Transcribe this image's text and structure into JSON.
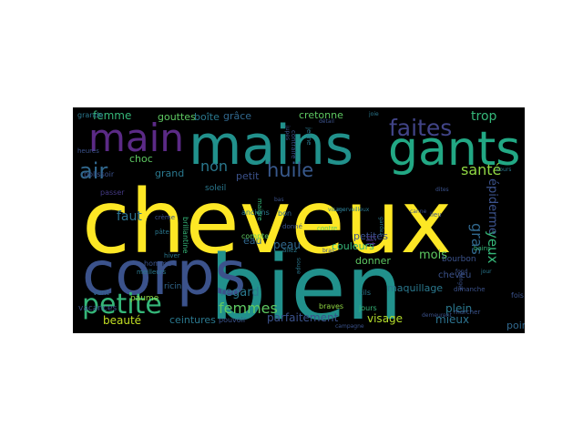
{
  "colors": {
    "background": "#000000",
    "page": "#ffffff",
    "palette": [
      "#fde725",
      "#35b779",
      "#21918c",
      "#31688e",
      "#443983",
      "#440154",
      "#90d743",
      "#1f9e89"
    ]
  },
  "words": [
    {
      "text": "cheveux",
      "color": "#fde725",
      "orient": "h"
    },
    {
      "text": "bien",
      "color": "#21918c",
      "orient": "h"
    },
    {
      "text": "mains",
      "color": "#21918c",
      "orient": "h"
    },
    {
      "text": "corps",
      "color": "#3b528b",
      "orient": "h"
    },
    {
      "text": "gants",
      "color": "#22a884",
      "orient": "h"
    },
    {
      "text": "main",
      "color": "#5b2a86",
      "orient": "h"
    },
    {
      "text": "petite",
      "color": "#35b779",
      "orient": "h"
    },
    {
      "text": "faites",
      "color": "#414487",
      "orient": "h"
    },
    {
      "text": "air",
      "color": "#31688e",
      "orient": "h"
    },
    {
      "text": "huile",
      "color": "#38598c",
      "orient": "h"
    },
    {
      "text": "santé",
      "color": "#90d743",
      "orient": "h"
    },
    {
      "text": "femmes",
      "color": "#5ec962",
      "orient": "h"
    },
    {
      "text": "non",
      "color": "#2a788e",
      "orient": "h"
    },
    {
      "text": "trop",
      "color": "#35b779",
      "orient": "h"
    },
    {
      "text": "faut",
      "color": "#2c728e",
      "orient": "h"
    },
    {
      "text": "gras",
      "color": "#31688e",
      "orient": "v"
    },
    {
      "text": "regard",
      "color": "#2a788e",
      "orient": "h"
    },
    {
      "text": "mois",
      "color": "#5ec962",
      "orient": "h"
    },
    {
      "text": "mieux",
      "color": "#2c728e",
      "orient": "h"
    },
    {
      "text": "beauté",
      "color": "#c2df23",
      "orient": "h"
    },
    {
      "text": "parfaitement",
      "color": "#3b528b",
      "orient": "h"
    },
    {
      "text": "visage",
      "color": "#b5de2b",
      "orient": "h"
    },
    {
      "text": "yeux",
      "color": "#35b779",
      "orient": "v"
    },
    {
      "text": "lit",
      "color": "#472d7b",
      "orient": "v"
    },
    {
      "text": "épiderme",
      "color": "#3b528b",
      "orient": "v"
    },
    {
      "text": "plein",
      "color": "#2a788e",
      "orient": "h"
    },
    {
      "text": "femme",
      "color": "#35b779",
      "orient": "h"
    },
    {
      "text": "gouttes",
      "color": "#5ec962",
      "orient": "h"
    },
    {
      "text": "boîte",
      "color": "#2a788e",
      "orient": "h"
    },
    {
      "text": "grâce",
      "color": "#31688e",
      "orient": "h"
    },
    {
      "text": "cretonne",
      "color": "#5ec962",
      "orient": "h"
    },
    {
      "text": "choc",
      "color": "#5ec962",
      "orient": "h"
    },
    {
      "text": "grand",
      "color": "#2a788e",
      "orient": "h"
    },
    {
      "text": "petit",
      "color": "#3b528b",
      "orient": "h"
    },
    {
      "text": "peau",
      "color": "#31688e",
      "orient": "h"
    },
    {
      "text": "donner",
      "color": "#5ec962",
      "orient": "h"
    },
    {
      "text": "ceintures",
      "color": "#2a788e",
      "orient": "h"
    },
    {
      "text": "point",
      "color": "#31688e",
      "orient": "h"
    },
    {
      "text": "maquillage",
      "color": "#2a788e",
      "orient": "h"
    },
    {
      "text": "eau",
      "color": "#31688e",
      "orient": "h"
    },
    {
      "text": "petites",
      "color": "#3b528b",
      "orient": "h"
    },
    {
      "text": "couleurs",
      "color": "#35b779",
      "orient": "h"
    },
    {
      "text": "bourbon",
      "color": "#3b528b",
      "orient": "h"
    },
    {
      "text": "cheveu",
      "color": "#3b528b",
      "orient": "h"
    },
    {
      "text": "pouvoir",
      "color": "#3b528b",
      "orient": "h"
    },
    {
      "text": "vacances",
      "color": "#3b528b",
      "orient": "h"
    },
    {
      "text": "vent",
      "color": "#31688e",
      "orient": "h"
    },
    {
      "text": "paume",
      "color": "#90d743",
      "orient": "h"
    },
    {
      "text": "ricin",
      "color": "#31688e",
      "orient": "h"
    },
    {
      "text": "soleil",
      "color": "#2a788e",
      "orient": "h"
    },
    {
      "text": "anciens",
      "color": "#2a788e",
      "orient": "h"
    },
    {
      "text": "compte",
      "color": "#5ec962",
      "orient": "h"
    },
    {
      "text": "bon",
      "color": "#31688e",
      "orient": "h"
    },
    {
      "text": "donné",
      "color": "#3b528b",
      "orient": "h"
    },
    {
      "text": "contre",
      "color": "#5ec962",
      "orient": "h"
    },
    {
      "text": "bains",
      "color": "#35b779",
      "orient": "h"
    },
    {
      "text": "fois",
      "color": "#3b528b",
      "orient": "h"
    },
    {
      "text": "jours",
      "color": "#35b779",
      "orient": "h"
    },
    {
      "text": "cils",
      "color": "#2a788e",
      "orient": "h"
    },
    {
      "text": "braves",
      "color": "#90d743",
      "orient": "h"
    },
    {
      "text": "allez",
      "color": "#2a788e",
      "orient": "h"
    },
    {
      "text": "lieu",
      "color": "#3b528b",
      "orient": "h"
    },
    {
      "text": "grande",
      "color": "#2a788e",
      "orient": "h"
    },
    {
      "text": "heures",
      "color": "#3b528b",
      "orient": "h"
    },
    {
      "text": "polissoir",
      "color": "#3b528b",
      "orient": "h"
    },
    {
      "text": "passer",
      "color": "#443983",
      "orient": "h"
    },
    {
      "text": "brillantine",
      "color": "#35b779",
      "orient": "v"
    },
    {
      "text": "crème",
      "color": "#3b528b",
      "orient": "h"
    },
    {
      "text": "pâte",
      "color": "#2a788e",
      "orient": "h"
    },
    {
      "text": "homme",
      "color": "#3b528b",
      "orient": "h"
    },
    {
      "text": "hiver",
      "color": "#2a788e",
      "orient": "h"
    },
    {
      "text": "meilleurs",
      "color": "#2a788e",
      "orient": "h"
    },
    {
      "text": "cours",
      "color": "#2a788e",
      "orient": "h"
    },
    {
      "text": "dites",
      "color": "#3b528b",
      "orient": "h"
    },
    {
      "text": "canne",
      "color": "#3b528b",
      "orient": "h"
    },
    {
      "text": "joie",
      "color": "#2a788e",
      "orient": "h"
    },
    {
      "text": "détail",
      "color": "#3b528b",
      "orient": "h"
    },
    {
      "text": "jupes",
      "color": "#3b528b",
      "orient": "v"
    },
    {
      "text": "jeune",
      "color": "#2a788e",
      "orient": "v"
    },
    {
      "text": "contraire",
      "color": "#3b528b",
      "orient": "v"
    },
    {
      "text": "maigre",
      "color": "#35b779",
      "orient": "v"
    },
    {
      "text": "gardez",
      "color": "#2a788e",
      "orient": "v"
    },
    {
      "text": "dimanche",
      "color": "#3b528b",
      "orient": "h"
    },
    {
      "text": "marcher",
      "color": "#3b528b",
      "orient": "h"
    },
    {
      "text": "demeurent",
      "color": "#3b528b",
      "orient": "h"
    },
    {
      "text": "jour",
      "color": "#2a788e",
      "orient": "h"
    },
    {
      "text": "danger",
      "color": "#3b528b",
      "orient": "v"
    },
    {
      "text": "soupe",
      "color": "#2a788e",
      "orient": "v"
    },
    {
      "text": "bras",
      "color": "#3b528b",
      "orient": "h"
    },
    {
      "text": "visage",
      "color": "#2a788e",
      "orient": "h"
    },
    {
      "text": "fond",
      "color": "#3b528b",
      "orient": "h"
    },
    {
      "text": "campagne",
      "color": "#3b528b",
      "orient": "h"
    },
    {
      "text": "merveilleux",
      "color": "#2a788e",
      "orient": "h"
    },
    {
      "text": "bas",
      "color": "#3b528b",
      "orient": "h"
    }
  ]
}
